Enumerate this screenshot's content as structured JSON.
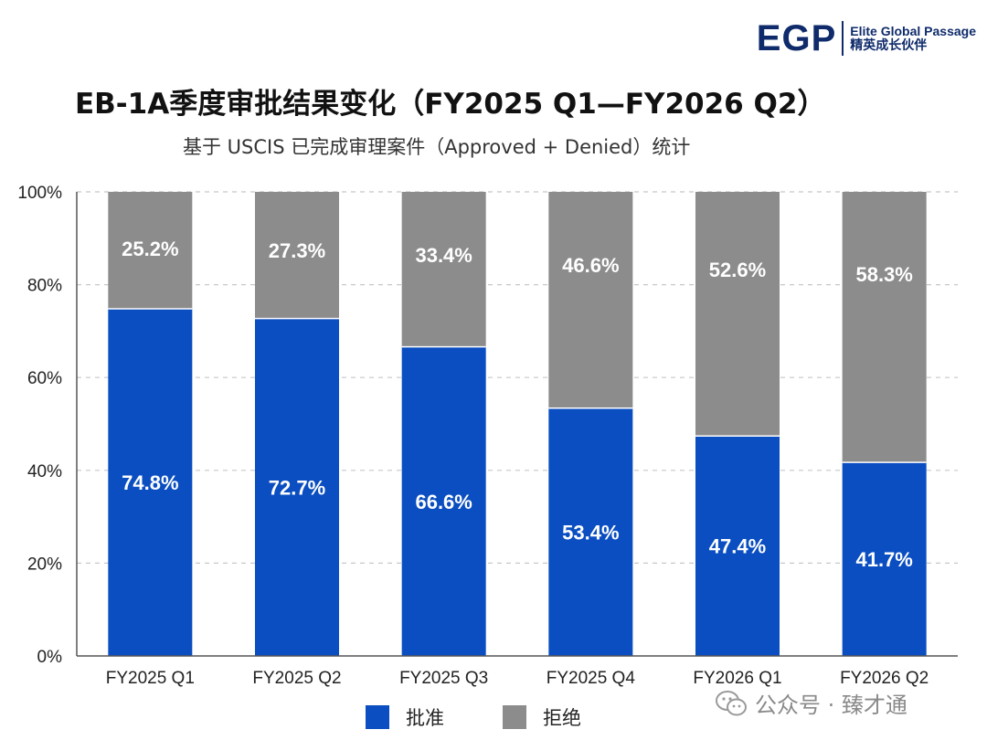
{
  "logo": {
    "mark": "EGP",
    "name_en": "Elite Global Passage",
    "name_cn": "精英成长伙伴"
  },
  "watermark": {
    "text": "公众号 · 臻才通",
    "icon": "wechat-icon"
  },
  "colors": {
    "approved": "#0a4ec1",
    "denied": "#8c8c8d",
    "grid": "#c8c8c8",
    "axis": "#555555"
  },
  "chart_data": {
    "type": "bar",
    "stacked": true,
    "title": "EB-1A季度审批结果变化（FY2025 Q1—FY2026 Q2）",
    "subtitle": "基于 USCIS 已完成审理案件（Approved + Denied）统计",
    "xlabel": "",
    "ylabel": "",
    "ylim": [
      0,
      100
    ],
    "yticks": [
      "0%",
      "20%",
      "40%",
      "60%",
      "80%",
      "100%"
    ],
    "grid": true,
    "legend_position": "bottom",
    "categories": [
      "FY2025 Q1",
      "FY2025 Q2",
      "FY2025 Q3",
      "FY2025 Q4",
      "FY2026 Q1",
      "FY2026 Q2"
    ],
    "series": [
      {
        "name": "批准",
        "values": [
          74.8,
          72.7,
          66.6,
          53.4,
          47.4,
          41.7
        ],
        "labels": [
          "74.8%",
          "72.7%",
          "66.6%",
          "53.4%",
          "47.4%",
          "41.7%"
        ]
      },
      {
        "name": "拒绝",
        "values": [
          25.2,
          27.3,
          33.4,
          46.6,
          52.6,
          58.3
        ],
        "labels": [
          "25.2%",
          "27.3%",
          "33.4%",
          "46.6%",
          "52.6%",
          "58.3%"
        ]
      }
    ]
  }
}
